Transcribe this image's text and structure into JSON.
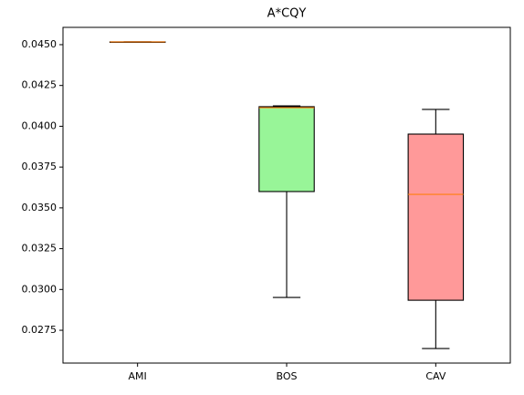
{
  "chart_data": {
    "type": "box",
    "title": "A*CQY",
    "categories": [
      "AMI",
      "BOS",
      "CAV"
    ],
    "boxes": [
      {
        "min": 0.04517,
        "q1": 0.04517,
        "median": 0.04517,
        "q3": 0.04517,
        "max": 0.04517,
        "color": "#add8e6"
      },
      {
        "min": 0.02951,
        "q1": 0.036,
        "median": 0.04114,
        "q3": 0.0412,
        "max": 0.04125,
        "color": "#98f598"
      },
      {
        "min": 0.02638,
        "q1": 0.02934,
        "median": 0.03583,
        "q3": 0.03952,
        "max": 0.04103,
        "color": "#ff9999"
      }
    ],
    "median_color": "#ff7f0e",
    "ylim": [
      0.02549,
      0.04606
    ],
    "yticks": [
      0.0275,
      {
        "value": 0.03,
        "label": "0.0300"
      },
      0.0325,
      {
        "value": 0.035,
        "label": "0.0350"
      },
      0.0375,
      {
        "value": 0.04,
        "label": "0.0400"
      },
      0.0425,
      {
        "value": 0.045,
        "label": "0.0450"
      }
    ]
  }
}
